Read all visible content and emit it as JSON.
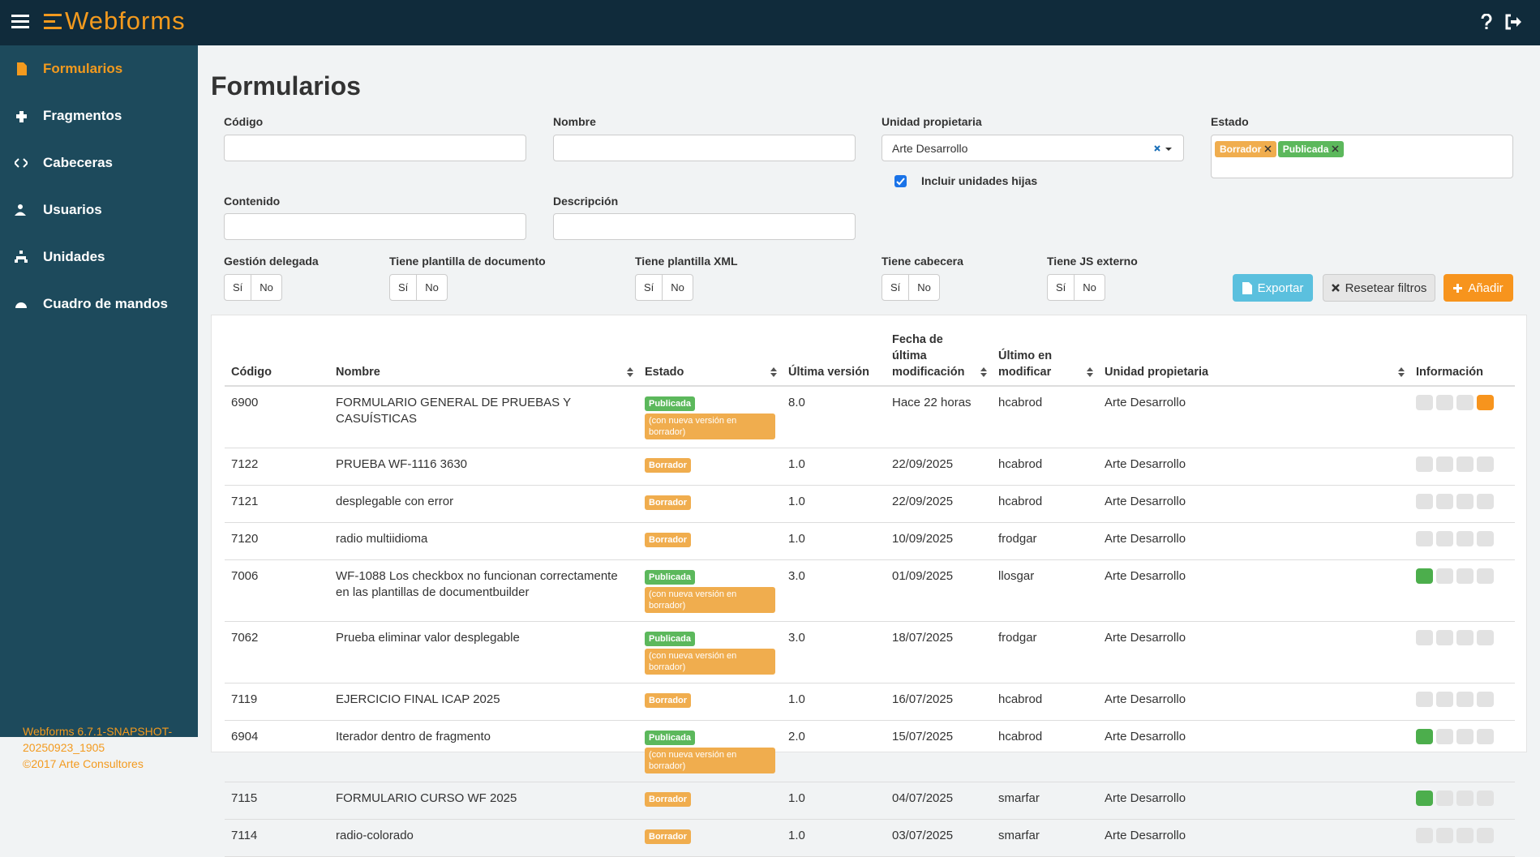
{
  "header": {
    "brand": "Webforms"
  },
  "sidebar": {
    "items": [
      "Formularios",
      "Fragmentos",
      "Cabeceras",
      "Usuarios",
      "Unidades",
      "Cuadro de mandos"
    ],
    "version": "Webforms 6.7.1-SNAPSHOT-20250923_1905",
    "copyright": "©2017 Arte Consultores"
  },
  "page": {
    "title": "Formularios"
  },
  "filters": {
    "codigo": "Código",
    "nombre": "Nombre",
    "unidad": "Unidad propietaria",
    "unidad_value": "Arte Desarrollo",
    "estado": "Estado",
    "estado_tags": [
      "Borrador",
      "Publicada"
    ],
    "incluir": "Incluir unidades hijas",
    "contenido": "Contenido",
    "descripcion": "Descripción",
    "toggles": [
      "Gestión delegada",
      "Tiene plantilla de documento",
      "Tiene plantilla XML",
      "Tiene cabecera",
      "Tiene JS externo"
    ],
    "options": [
      "Sí",
      "No"
    ]
  },
  "buttons": [
    "Exportar",
    "Resetear filtros",
    "Añadir"
  ],
  "table": {
    "columns": [
      "Código",
      "Nombre",
      "Estado",
      "Última versión",
      "Fecha de última modificación",
      "Último en modificar",
      "Unidad propietaria",
      "Información"
    ],
    "note": "(con nueva versión en borrador)",
    "rows": [
      [
        "6900",
        "FORMULARIO GENERAL DE PRUEBAS Y CASUÍSTICAS",
        "Publicada",
        "8.0",
        "Hace 22 horas",
        "hcabrod",
        "Arte Desarrollo"
      ],
      [
        "7122",
        "PRUEBA WF-1116 3630",
        "Borrador",
        "1.0",
        "22/09/2025",
        "hcabrod",
        "Arte Desarrollo"
      ],
      [
        "7121",
        "desplegable con error",
        "Borrador",
        "1.0",
        "22/09/2025",
        "hcabrod",
        "Arte Desarrollo"
      ],
      [
        "7120",
        "radio multiidioma",
        "Borrador",
        "1.0",
        "10/09/2025",
        "frodgar",
        "Arte Desarrollo"
      ],
      [
        "7006",
        "WF-1088 Los checkbox no funcionan correctamente en las plantillas de documentbuilder",
        "Publicada",
        "3.0",
        "01/09/2025",
        "llosgar",
        "Arte Desarrollo"
      ],
      [
        "7062",
        "Prueba eliminar valor desplegable",
        "Publicada",
        "3.0",
        "18/07/2025",
        "frodgar",
        "Arte Desarrollo"
      ],
      [
        "7119",
        "EJERCICIO FINAL ICAP 2025",
        "Borrador",
        "1.0",
        "16/07/2025",
        "hcabrod",
        "Arte Desarrollo"
      ],
      [
        "6904",
        "Iterador dentro de fragmento",
        "Publicada",
        "2.0",
        "15/07/2025",
        "hcabrod",
        "Arte Desarrollo"
      ],
      [
        "7115",
        "FORMULARIO CURSO WF 2025",
        "Borrador",
        "1.0",
        "04/07/2025",
        "smarfar",
        "Arte Desarrollo"
      ],
      [
        "7114",
        "radio-colorado",
        "Borrador",
        "1.0",
        "03/07/2025",
        "smarfar",
        "Arte Desarrollo"
      ]
    ]
  }
}
